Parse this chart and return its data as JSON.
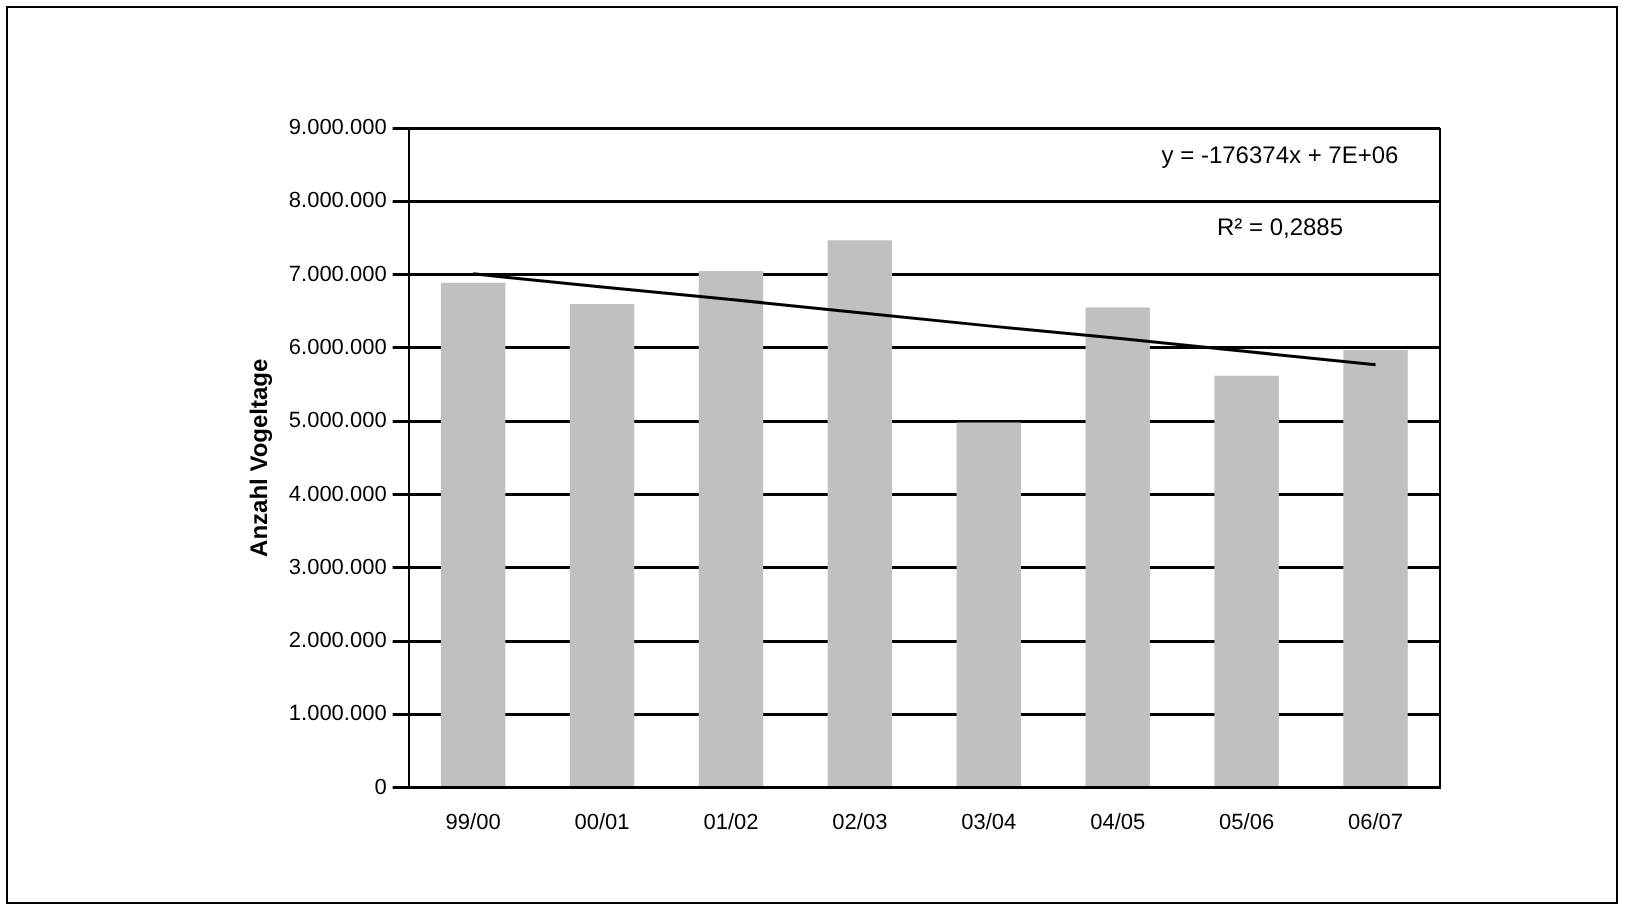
{
  "chart_data": {
    "type": "bar",
    "ylabel": "Anzahl Vogeltage",
    "categories": [
      "99/00",
      "00/01",
      "01/02",
      "02/03",
      "03/04",
      "04/05",
      "05/06",
      "06/07"
    ],
    "series": [
      {
        "color": "#c0c0c0",
        "values": [
          6890000,
          6600000,
          7050000,
          7470000,
          4980000,
          6550000,
          5620000,
          5970000
        ]
      },
      {
        "type": "line",
        "color": "#000000",
        "values": [
          7010000,
          6830000,
          6660000,
          6480000,
          6300000,
          6130000,
          5950000,
          5770000
        ]
      }
    ],
    "ylim": [
      0,
      9000000
    ],
    "yticks": [
      {
        "value": 0,
        "label": "0"
      },
      {
        "value": 1000000,
        "label": "1.000.000"
      },
      {
        "value": 2000000,
        "label": "2.000.000"
      },
      {
        "value": 3000000,
        "label": "3.000.000"
      },
      {
        "value": 4000000,
        "label": "4.000.000"
      },
      {
        "value": 5000000,
        "label": "5.000.000"
      },
      {
        "value": 6000000,
        "label": "6.000.000"
      },
      {
        "value": 7000000,
        "label": "7.000.000"
      },
      {
        "value": 8000000,
        "label": "8.000.000"
      },
      {
        "value": 9000000,
        "label": "9.000.000"
      }
    ],
    "annotations": [
      "y = -176374x + 7E+06",
      "R² = 0,2885"
    ],
    "grid": "y",
    "legend": false,
    "marker": "none"
  }
}
